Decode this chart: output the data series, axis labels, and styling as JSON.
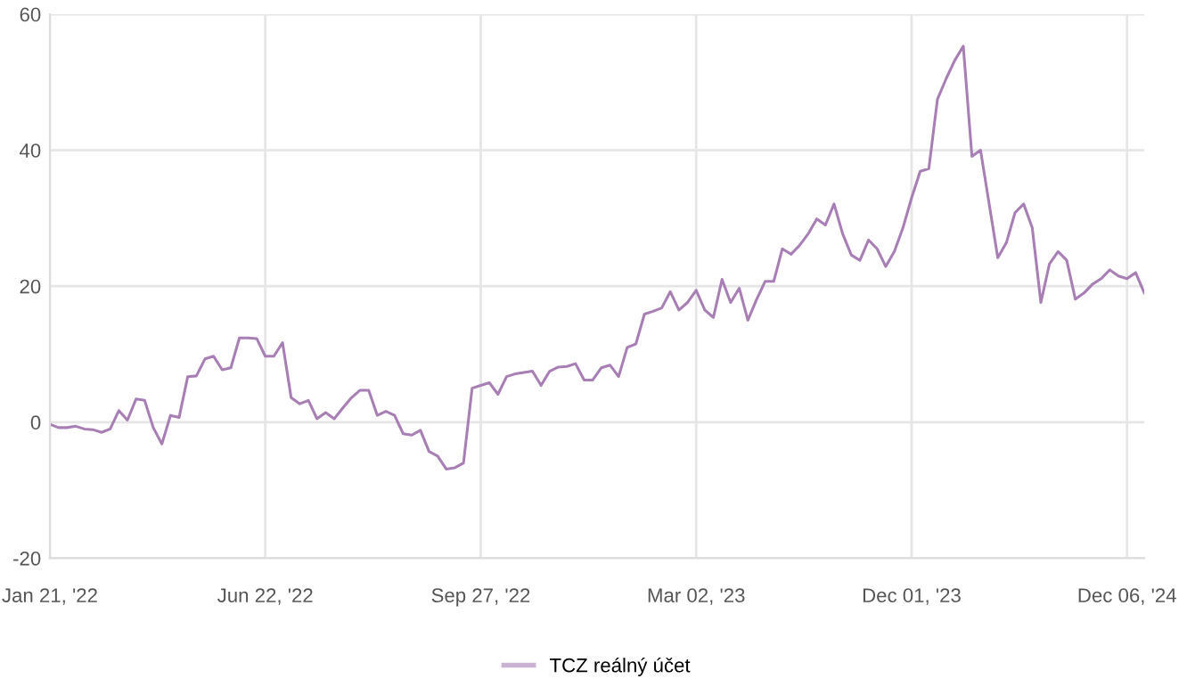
{
  "chart_data": {
    "type": "line",
    "categories": [
      "Jan 21, '22",
      null,
      null,
      null,
      null,
      null,
      null,
      null,
      null,
      null,
      null,
      null,
      null,
      null,
      null,
      null,
      null,
      null,
      null,
      null,
      null,
      null,
      null,
      null,
      null,
      "Jun 22, '22",
      null,
      null,
      null,
      null,
      null,
      null,
      null,
      null,
      null,
      null,
      null,
      null,
      null,
      null,
      null,
      null,
      null,
      null,
      null,
      null,
      null,
      null,
      null,
      null,
      "Sep 27, '22",
      null,
      null,
      null,
      null,
      null,
      null,
      null,
      null,
      null,
      null,
      null,
      null,
      null,
      null,
      null,
      null,
      null,
      null,
      null,
      null,
      null,
      null,
      null,
      null,
      "Mar 02, '23",
      null,
      null,
      null,
      null,
      null,
      null,
      null,
      null,
      null,
      null,
      null,
      null,
      null,
      null,
      null,
      null,
      null,
      null,
      null,
      null,
      null,
      null,
      null,
      null,
      "Dec 01, '23",
      null,
      null,
      null,
      null,
      null,
      null,
      null,
      null,
      null,
      null,
      null,
      null,
      null,
      null,
      null,
      null,
      null,
      null,
      null,
      null,
      null,
      null,
      null,
      null,
      "Dec 06, '24",
      null,
      null
    ],
    "series": [
      {
        "name": "TCZ reálný účet",
        "color": "#a77fb4",
        "values": [
          -0.3,
          -0.8,
          -0.8,
          -0.6,
          -1,
          -1.1,
          -1.5,
          -1,
          1.7,
          0.3,
          3.4,
          3.2,
          -0.8,
          -3.2,
          1.0,
          0.7,
          6.7,
          6.8,
          9.3,
          9.7,
          7.7,
          8,
          12.4,
          12.4,
          12.3,
          9.7,
          9.7,
          11.7,
          3.6,
          2.7,
          3.2,
          0.5,
          1.4,
          0.5,
          2.1,
          3.6,
          4.7,
          4.7,
          1,
          1.6,
          1,
          -1.7,
          -1.9,
          -1.2,
          -4.3,
          -5,
          -6.9,
          -6.7,
          -6,
          5,
          5.4,
          5.8,
          4.1,
          6.7,
          7.1,
          7.3,
          7.5,
          5.4,
          7.5,
          8.1,
          8.2,
          8.6,
          6.2,
          6.2,
          8,
          8.4,
          6.7,
          11,
          11.5,
          15.9,
          16.3,
          16.8,
          19.2,
          16.5,
          17.6,
          19.4,
          16.5,
          15.4,
          21,
          17.6,
          19.7,
          15,
          18,
          20.7,
          20.7,
          25.5,
          24.7,
          26,
          27.7,
          29.9,
          29,
          32.1,
          27.7,
          24.6,
          23.8,
          26.8,
          25.5,
          22.9,
          25.1,
          28.6,
          33,
          36.9,
          37.3,
          47.5,
          50.5,
          53.2,
          55.3,
          39.1,
          40,
          32.1,
          24.2,
          26.4,
          30.8,
          32.1,
          28.6,
          17.6,
          23.3,
          25.1,
          23.8,
          18.1,
          19,
          20.3,
          21.1,
          22.4,
          21.5,
          21.1,
          22,
          19
        ]
      }
    ],
    "ylim": [
      -20,
      60
    ],
    "yticks": [
      -20,
      0,
      20,
      40,
      60
    ],
    "grid": true,
    "legend": "bottom",
    "marker": "none",
    "line_style": "solid"
  }
}
